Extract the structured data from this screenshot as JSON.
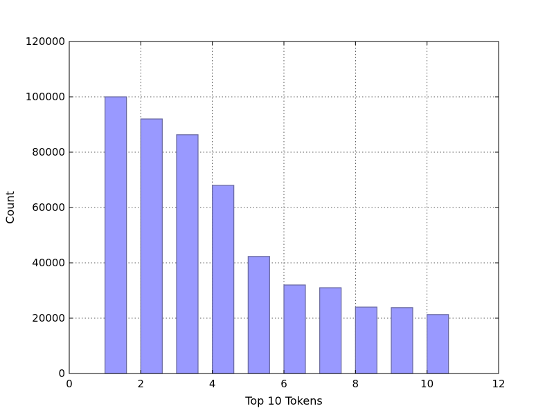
{
  "chart_data": {
    "type": "bar",
    "title": "",
    "xlabel": "Top 10 Tokens",
    "ylabel": "Count",
    "xlim": [
      0,
      12
    ],
    "ylim": [
      0,
      120000
    ],
    "xticks": [
      0,
      2,
      4,
      6,
      8,
      10,
      12
    ],
    "yticks": [
      0,
      20000,
      40000,
      60000,
      80000,
      100000,
      120000
    ],
    "grid": true,
    "bar_width": 0.6,
    "x": [
      1,
      2,
      3,
      4,
      5,
      6,
      7,
      8,
      9,
      10
    ],
    "values": [
      100000,
      92000,
      86300,
      68000,
      42300,
      32000,
      31000,
      24000,
      23800,
      21300
    ],
    "colors": {
      "bar_fill": "#9999ff",
      "bar_edge": "#66669c"
    }
  }
}
